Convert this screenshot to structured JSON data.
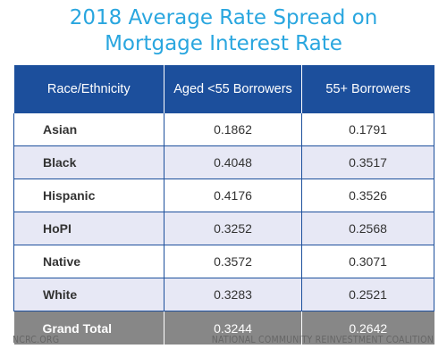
{
  "title_line1": "2018 Average Rate Spread on",
  "title_line2": "Mortgage Interest Rate",
  "colors": {
    "title": "#29a6df",
    "header_bg": "#1c4f9c",
    "stripe_bg": "#e7e8f5",
    "total_bg": "#878787"
  },
  "footer": {
    "left": "NCRC.ORG",
    "right": "NATIONAL COMMUNITY REINVESTMENT COALITION"
  },
  "chart_data": {
    "type": "table",
    "title": "2018 Average Rate Spread on Mortgage Interest Rate",
    "columns": [
      "Race/Ethnicity",
      "Aged <55 Borrowers",
      "55+ Borrowers"
    ],
    "rows": [
      [
        "Asian",
        "0.1862",
        "0.1791"
      ],
      [
        "Black",
        "0.4048",
        "0.3517"
      ],
      [
        "Hispanic",
        "0.4176",
        "0.3526"
      ],
      [
        "HoPI",
        "0.3252",
        "0.2568"
      ],
      [
        "Native",
        "0.3572",
        "0.3071"
      ],
      [
        "White",
        "0.3283",
        "0.2521"
      ]
    ],
    "total": [
      "Grand Total",
      "0.3244",
      "0.2642"
    ]
  }
}
